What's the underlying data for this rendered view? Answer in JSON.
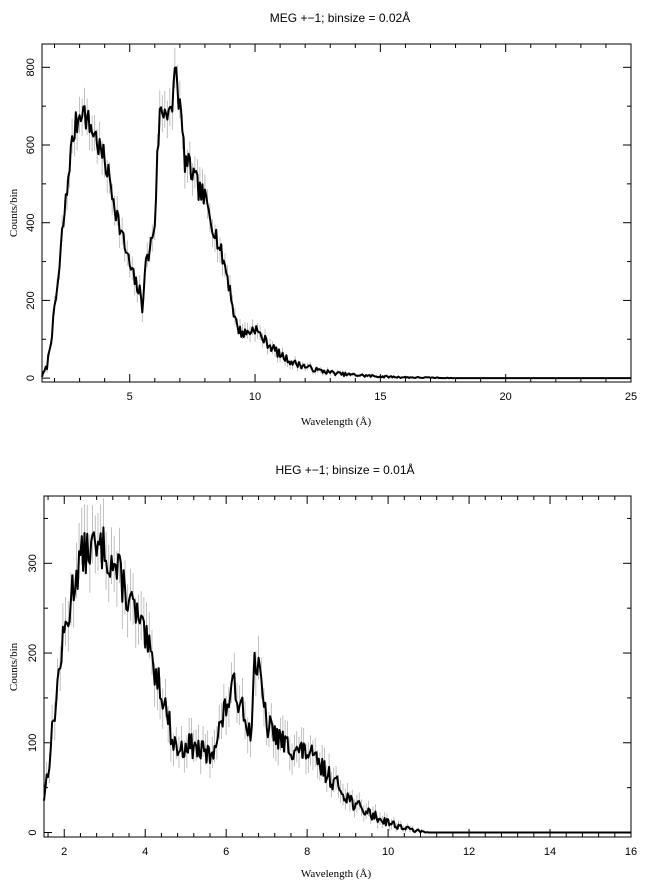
{
  "chart_data": [
    {
      "type": "line",
      "title": "MEG +−1; binsize = 0.02Å",
      "xlabel": "Wavelength (Å)",
      "ylabel": "Counts/bin",
      "xlim": [
        1.5,
        25
      ],
      "ylim": [
        -10,
        860
      ],
      "xticks": [
        5,
        10,
        15,
        20,
        25
      ],
      "xtick_labels": [
        "5",
        "10",
        "15",
        "20",
        "25"
      ],
      "yticks": [
        0,
        200,
        400,
        600,
        800
      ],
      "ytick_labels": [
        "0",
        "200",
        "400",
        "600",
        "800"
      ],
      "grid": false,
      "line_color": "#000000",
      "error_color": "#b0b0b0",
      "series": [
        {
          "x": [
            1.5,
            1.7,
            1.9,
            2.0,
            2.1,
            2.2,
            2.3,
            2.5,
            2.6,
            2.8,
            2.9,
            3.0,
            3.1,
            3.2,
            3.4,
            3.6,
            3.8,
            4.0,
            4.2,
            4.4,
            4.6,
            4.8,
            5.0,
            5.2,
            5.4,
            5.5,
            5.6,
            5.8,
            6.0,
            6.1,
            6.2,
            6.4,
            6.6,
            6.7,
            6.8,
            6.9,
            7.0,
            7.2,
            7.4,
            7.6,
            7.8,
            8.0,
            8.2,
            8.4,
            8.6,
            8.8,
            9.0,
            9.2,
            9.4,
            9.6,
            9.8,
            10.0,
            10.2,
            10.5,
            11.0,
            11.5,
            12.0,
            12.5,
            13.0,
            13.5,
            14.0,
            15.0,
            16.0,
            17.0,
            18.0,
            20.0,
            22.0,
            25.0
          ],
          "y": [
            5,
            30,
            120,
            170,
            230,
            280,
            370,
            480,
            560,
            640,
            660,
            680,
            700,
            680,
            650,
            630,
            590,
            560,
            510,
            450,
            390,
            340,
            290,
            250,
            220,
            180,
            280,
            330,
            400,
            560,
            680,
            690,
            700,
            660,
            820,
            750,
            700,
            560,
            540,
            510,
            480,
            460,
            420,
            380,
            330,
            290,
            230,
            150,
            120,
            115,
            120,
            130,
            110,
            90,
            60,
            40,
            30,
            20,
            15,
            10,
            8,
            4,
            2,
            1,
            0,
            0,
            0,
            0
          ]
        }
      ]
    },
    {
      "type": "line",
      "title": "HEG +−1; binsize = 0.01Å",
      "xlabel": "Wavelength (Å)",
      "ylabel": "Counts/bin",
      "xlim": [
        1.5,
        16
      ],
      "ylim": [
        -5,
        375
      ],
      "xticks": [
        2,
        4,
        6,
        8,
        10,
        12,
        14,
        16
      ],
      "xtick_labels": [
        "2",
        "4",
        "6",
        "8",
        "10",
        "12",
        "14",
        "16"
      ],
      "yticks": [
        0,
        100,
        200,
        300
      ],
      "ytick_labels": [
        "0",
        "100",
        "200",
        "300"
      ],
      "grid": false,
      "line_color": "#000000",
      "error_color": "#b0b0b0",
      "series": [
        {
          "x": [
            1.5,
            1.6,
            1.7,
            1.8,
            1.9,
            2.0,
            2.1,
            2.2,
            2.3,
            2.4,
            2.5,
            2.6,
            2.7,
            2.8,
            2.9,
            3.0,
            3.1,
            3.2,
            3.3,
            3.4,
            3.5,
            3.6,
            3.7,
            3.8,
            3.9,
            4.0,
            4.1,
            4.2,
            4.3,
            4.4,
            4.5,
            4.6,
            4.7,
            4.8,
            4.9,
            5.0,
            5.2,
            5.4,
            5.6,
            5.8,
            6.0,
            6.1,
            6.2,
            6.3,
            6.4,
            6.5,
            6.6,
            6.7,
            6.8,
            6.9,
            7.0,
            7.2,
            7.4,
            7.6,
            7.8,
            8.0,
            8.2,
            8.4,
            8.6,
            8.8,
            9.0,
            9.2,
            9.4,
            9.6,
            9.8,
            10.0,
            10.2,
            10.4,
            10.6,
            10.8,
            11.0,
            12.0,
            13.0,
            14.0,
            15.0,
            16.0
          ],
          "y": [
            40,
            70,
            110,
            150,
            190,
            220,
            240,
            270,
            290,
            305,
            310,
            315,
            320,
            310,
            315,
            320,
            305,
            300,
            290,
            285,
            270,
            260,
            250,
            240,
            225,
            215,
            200,
            185,
            175,
            160,
            140,
            120,
            100,
            95,
            90,
            100,
            95,
            90,
            85,
            110,
            140,
            155,
            160,
            150,
            145,
            130,
            100,
            195,
            180,
            150,
            120,
            110,
            100,
            95,
            90,
            90,
            80,
            70,
            60,
            50,
            40,
            30,
            25,
            20,
            15,
            12,
            8,
            5,
            3,
            1,
            0,
            0,
            0,
            0,
            0,
            0
          ]
        }
      ]
    }
  ]
}
